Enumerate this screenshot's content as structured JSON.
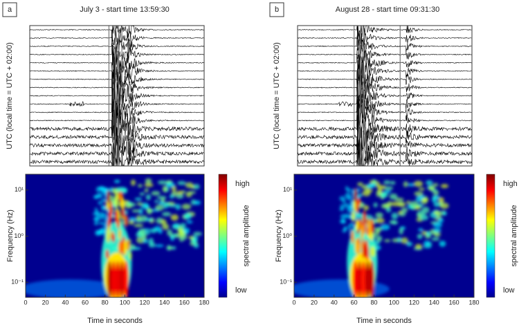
{
  "chart_data": [
    {
      "type": "seismogram",
      "panel": "a",
      "title": "July 3 - start time 13:59:30",
      "ylabel": "UTC (local time = UTC + 02:00)"
    },
    {
      "type": "spectrogram",
      "xlabel": "Time in seconds",
      "ylabel": "Frequency (Hz)",
      "xlim": [
        0,
        180
      ],
      "xticks": [
        0,
        20,
        40,
        60,
        80,
        100,
        120,
        140,
        160,
        180
      ],
      "ylim": [
        0.047,
        22
      ],
      "log_y": true,
      "yticks": [
        {
          "value": 0.1,
          "label": "10⁻¹"
        },
        {
          "value": 1,
          "label": "10⁰"
        },
        {
          "value": 10,
          "label": "10¹"
        }
      ],
      "colorbar": {
        "label": "spectral amplitude",
        "high": "high",
        "low": "low"
      }
    },
    {
      "type": "seismogram",
      "panel": "b",
      "title": "August 28 - start time  09:31:30",
      "ylabel": "UTC (local time = UTC + 02:00)"
    },
    {
      "type": "spectrogram",
      "xlabel": "Time in seconds",
      "ylabel": "Frequency (Hz)",
      "xlim": [
        0,
        180
      ],
      "xticks": [
        0,
        20,
        40,
        60,
        80,
        100,
        120,
        140,
        160,
        180
      ],
      "ylim": [
        0.047,
        22
      ],
      "log_y": true,
      "yticks": [
        {
          "value": 0.1,
          "label": "10⁻¹"
        },
        {
          "value": 1,
          "label": "10⁰"
        },
        {
          "value": 10,
          "label": "10¹"
        }
      ],
      "colorbar": {
        "label": "spectral amplitude",
        "high": "high",
        "low": "low"
      }
    }
  ]
}
